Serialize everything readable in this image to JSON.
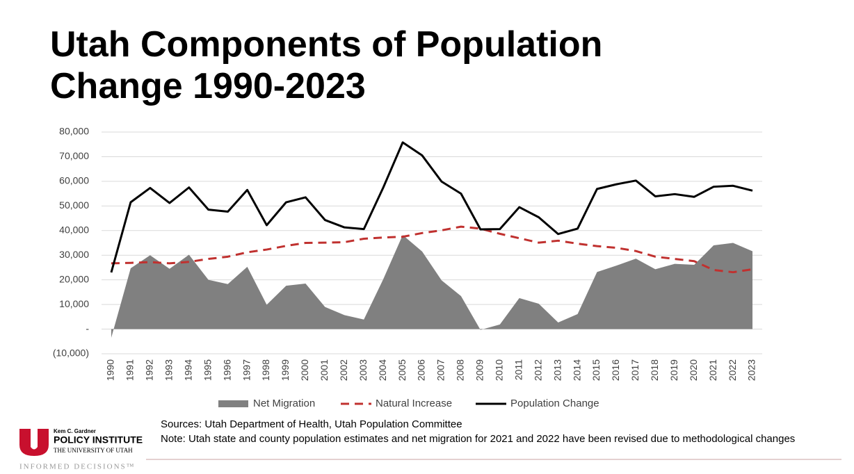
{
  "chart_data": {
    "type": "line",
    "title": "Utah Components of Population Change 1990-2023",
    "categories": [
      "1990",
      "1991",
      "1992",
      "1993",
      "1994",
      "1995",
      "1996",
      "1997",
      "1998",
      "1999",
      "2000",
      "2001",
      "2002",
      "2003",
      "2004",
      "2005",
      "2006",
      "2007",
      "2008",
      "2009",
      "2010",
      "2011",
      "2012",
      "2013",
      "2014",
      "2015",
      "2016",
      "2017",
      "2018",
      "2019",
      "2020",
      "2021",
      "2022",
      "2023"
    ],
    "series": [
      {
        "name": "Net Migration",
        "type": "area",
        "color": "#808080",
        "values": [
          -3500,
          24700,
          30000,
          24500,
          30200,
          20000,
          18300,
          25300,
          9900,
          17600,
          18500,
          9000,
          5700,
          3900,
          20300,
          38200,
          31500,
          19800,
          13400,
          -300,
          1900,
          12600,
          10300,
          2700,
          6100,
          23200,
          25800,
          28600,
          24300,
          26500,
          26100,
          34000,
          35000,
          31600
        ]
      },
      {
        "name": "Natural Increase",
        "type": "line",
        "dashed": true,
        "color": "#c0312f",
        "values": [
          26700,
          26900,
          27200,
          26700,
          27300,
          28500,
          29400,
          31200,
          32300,
          33800,
          35000,
          35100,
          35300,
          36700,
          37200,
          37500,
          39000,
          40100,
          41600,
          40800,
          38700,
          36900,
          35100,
          35900,
          34700,
          33700,
          33000,
          31700,
          29400,
          28500,
          27600,
          24000,
          23100,
          24300
        ]
      },
      {
        "name": "Population Change",
        "type": "line",
        "dashed": false,
        "color": "#000000",
        "values": [
          23000,
          51500,
          57300,
          51200,
          57500,
          48500,
          47700,
          56500,
          42200,
          51500,
          53500,
          44300,
          41300,
          40600,
          57500,
          75800,
          70500,
          59900,
          55000,
          40500,
          40600,
          49500,
          45400,
          38600,
          40800,
          56900,
          58800,
          60300,
          53900,
          54800,
          53700,
          57800,
          58200,
          56200
        ]
      }
    ],
    "ylim": [
      -10000,
      80000
    ],
    "yticks": [
      {
        "value": -10000,
        "label": "(10,000)"
      },
      {
        "value": 0,
        "label": "-"
      },
      {
        "value": 10000,
        "label": "10,000"
      },
      {
        "value": 20000,
        "label": "20,000"
      },
      {
        "value": 30000,
        "label": "30,000"
      },
      {
        "value": 40000,
        "label": "40,000"
      },
      {
        "value": 50000,
        "label": "50,000"
      },
      {
        "value": 60000,
        "label": "60,000"
      },
      {
        "value": 70000,
        "label": "70,000"
      },
      {
        "value": 80000,
        "label": "80,000"
      }
    ],
    "grid": true,
    "legend": "bottom"
  },
  "footer": {
    "logo": {
      "line1": "Kem C. Gardner",
      "line2": "POLICY INSTITUTE",
      "line3": "THE UNIVERSITY OF UTAH",
      "tagline": "INFORMED DECISIONS™"
    },
    "sources": "Sources: Utah Department of Health, Utah Population Committee",
    "note": "Note: Utah state and county population estimates and net migration for 2021 and 2022 have been revised due to methodological changes"
  }
}
